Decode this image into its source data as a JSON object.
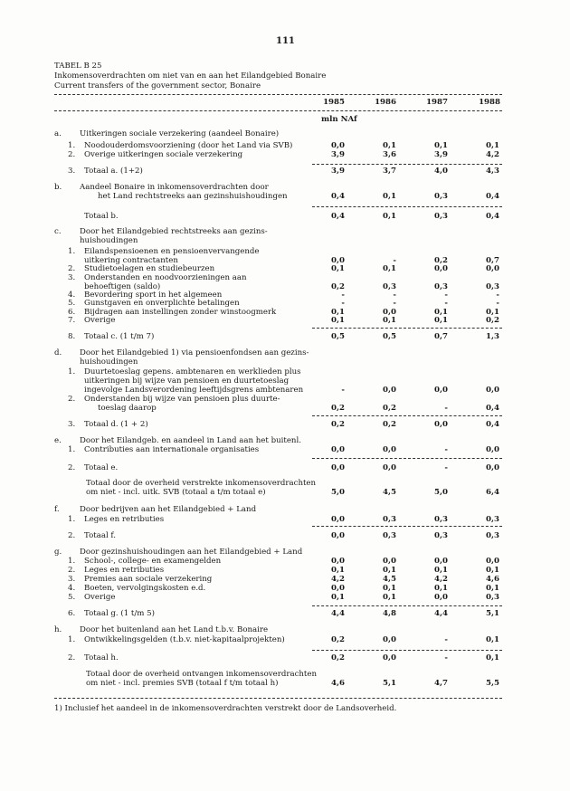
{
  "page_number": "111",
  "table_id": "TABEL B 25",
  "title_nl": "Inkomensoverdrachten om niet van en aan het Eilandgebied Bonaire",
  "title_en": "Current transfers of the government sector, Bonaire",
  "years": [
    "1985",
    "1986",
    "1987",
    "1988"
  ],
  "unit": "mln NAf",
  "rows": [
    {
      "k": "a.",
      "t": [
        "Uitkeringen sociale verzekering (aandeel Bonaire)"
      ]
    },
    {
      "n": "1.",
      "t": [
        "Noodouderdomsvoorziening (door het Land via SVB)"
      ],
      "v": [
        "0,0",
        "0,1",
        "0,1",
        "0,1"
      ]
    },
    {
      "n": "2.",
      "t": [
        "Overige uitkeringen sociale verzekering"
      ],
      "v": [
        "3,9",
        "3,6",
        "3,9",
        "4,2"
      ]
    },
    {
      "n": "3.",
      "t": [
        "Totaal a. (1+2)"
      ],
      "v": [
        "3,9",
        "3,7",
        "4,0",
        "4,3"
      ]
    },
    {
      "k": "b.",
      "t": [
        "Aandeel Bonaire in inkomensoverdrachten door",
        "het Land rechtstreeks aan gezinshuishoudingen"
      ],
      "v": [
        "0,4",
        "0,1",
        "0,3",
        "0,4"
      ]
    },
    {
      "n": "",
      "t": [
        "Totaal b."
      ],
      "v": [
        "0,4",
        "0,1",
        "0,3",
        "0,4"
      ]
    },
    {
      "k": "c.",
      "t": [
        "Door het Eilandgebied rechtstreeks aan gezins-",
        "huishoudingen"
      ]
    },
    {
      "n": "1.",
      "t": [
        "Eilandspensioenen en pensioenvervangende",
        "uitkering contractanten"
      ],
      "v": [
        "0,0",
        "-",
        "0,2",
        "0,7"
      ]
    },
    {
      "n": "2.",
      "t": [
        "Studietoelagen en studiebeurzen"
      ],
      "v": [
        "0,1",
        "0,1",
        "0,0",
        "0,0"
      ]
    },
    {
      "n": "3.",
      "t": [
        "Onderstanden en noodvoorzieningen aan",
        "behoeftigen (saldo)"
      ],
      "v": [
        "0,2",
        "0,3",
        "0,3",
        "0,3"
      ]
    },
    {
      "n": "4.",
      "t": [
        "Bevordering sport in het algemeen"
      ],
      "v": [
        "-",
        "-",
        "-",
        "-"
      ]
    },
    {
      "n": "5.",
      "t": [
        "Gunstgaven en onverplichte betalingen"
      ],
      "v": [
        "-",
        "-",
        "-",
        "-"
      ]
    },
    {
      "n": "6.",
      "t": [
        "Bijdragen aan instellingen zonder winstoogmerk"
      ],
      "v": [
        "0,1",
        "0,0",
        "0,1",
        "0,1"
      ]
    },
    {
      "n": "7.",
      "t": [
        "Overige"
      ],
      "v": [
        "0,1",
        "0,1",
        "0,1",
        "0,2"
      ]
    },
    {
      "n": "8.",
      "t": [
        "Totaal c. (1 t/m 7)"
      ],
      "v": [
        "0,5",
        "0,5",
        "0,7",
        "1,3"
      ]
    },
    {
      "k": "d.",
      "t": [
        "Door het Eilandgebied 1) via pensioenfondsen aan gezins-",
        "huishoudingen"
      ]
    },
    {
      "n": "1.",
      "t": [
        "Duurtetoeslag gepens. ambtenaren en werklieden plus",
        "uitkeringen bij wijze van pensioen en duurtetoeslag",
        "ingevolge Landsverordening leeftijdsgrens ambtenaren"
      ],
      "v": [
        "-",
        "0,0",
        "0,0",
        "0,0"
      ]
    },
    {
      "n": "2.",
      "t": [
        "Onderstanden bij wijze van pensioen plus duurte-",
        "toeslag daarop"
      ],
      "v": [
        "0,2",
        "0,2",
        "-",
        "0,4"
      ]
    },
    {
      "n": "3.",
      "t": [
        "Totaal d. (1 + 2)"
      ],
      "v": [
        "0,2",
        "0,2",
        "0,0",
        "0,4"
      ]
    },
    {
      "k": "e.",
      "t": [
        "Door het Eilandgeb. en aandeel in Land aan het buitenl."
      ]
    },
    {
      "n": "1.",
      "t": [
        "Contributies aan internationale organisaties"
      ],
      "v": [
        "0,0",
        "0,0",
        "-",
        "0,0"
      ]
    },
    {
      "n": "2.",
      "t": [
        "Totaal e."
      ],
      "v": [
        "0,0",
        "0,0",
        "-",
        "0,0"
      ]
    },
    {
      "g": true,
      "t": [
        "Totaal door de overheid verstrekte inkomensoverdrachten",
        "om niet - incl. uitk. SVB (totaal a t/m totaal e)"
      ],
      "v": [
        "5,0",
        "4,5",
        "5,0",
        "6,4"
      ]
    },
    {
      "k": "f.",
      "t": [
        "Door bedrijven aan het Eilandgebied + Land"
      ]
    },
    {
      "n": "1.",
      "t": [
        "Leges en retributies"
      ],
      "v": [
        "0,0",
        "0,3",
        "0,3",
        "0,3"
      ]
    },
    {
      "n": "2.",
      "t": [
        "Totaal f."
      ],
      "v": [
        "0,0",
        "0,3",
        "0,3",
        "0,3"
      ]
    },
    {
      "k": "g.",
      "t": [
        "Door gezinshuishoudingen aan het Eilandgebied + Land"
      ]
    },
    {
      "n": "1.",
      "t": [
        "School-, college- en examengelden"
      ],
      "v": [
        "0,0",
        "0,0",
        "0,0",
        "0,0"
      ]
    },
    {
      "n": "2.",
      "t": [
        "Leges en retributies"
      ],
      "v": [
        "0,1",
        "0,1",
        "0,1",
        "0,1"
      ]
    },
    {
      "n": "3.",
      "t": [
        "Premies aan sociale verzekering"
      ],
      "v": [
        "4,2",
        "4,5",
        "4,2",
        "4,6"
      ]
    },
    {
      "n": "4.",
      "t": [
        "Boeten, vervolgingskosten e.d."
      ],
      "v": [
        "0,0",
        "0,1",
        "0,1",
        "0,1"
      ]
    },
    {
      "n": "5.",
      "t": [
        "Overige"
      ],
      "v": [
        "0,1",
        "0,1",
        "0,0",
        "0,3"
      ]
    },
    {
      "n": "6.",
      "t": [
        "Totaal g. (1 t/m 5)"
      ],
      "v": [
        "4,4",
        "4,8",
        "4,4",
        "5,1"
      ]
    },
    {
      "k": "h.",
      "t": [
        "Door het buitenland aan het Land t.b.v. Bonaire"
      ]
    },
    {
      "n": "1.",
      "t": [
        "Ontwikkelingsgelden (t.b.v. niet-kapitaalprojekten)"
      ],
      "v": [
        "0,2",
        "0,0",
        "-",
        "0,1"
      ]
    },
    {
      "n": "2.",
      "t": [
        "Totaal h."
      ],
      "v": [
        "0,2",
        "0,0",
        "-",
        "0,1"
      ]
    },
    {
      "g": true,
      "t": [
        "Totaal door de overheid ontvangen inkomensoverdrachten",
        "om niet - incl. premies SVB (totaal f t/m totaal h)"
      ],
      "v": [
        "4,6",
        "5,1",
        "4,7",
        "5,5"
      ]
    }
  ],
  "footnote": "1) Inclusief het aandeel in de inkomensoverdrachten verstrekt door de Landsoverheid."
}
